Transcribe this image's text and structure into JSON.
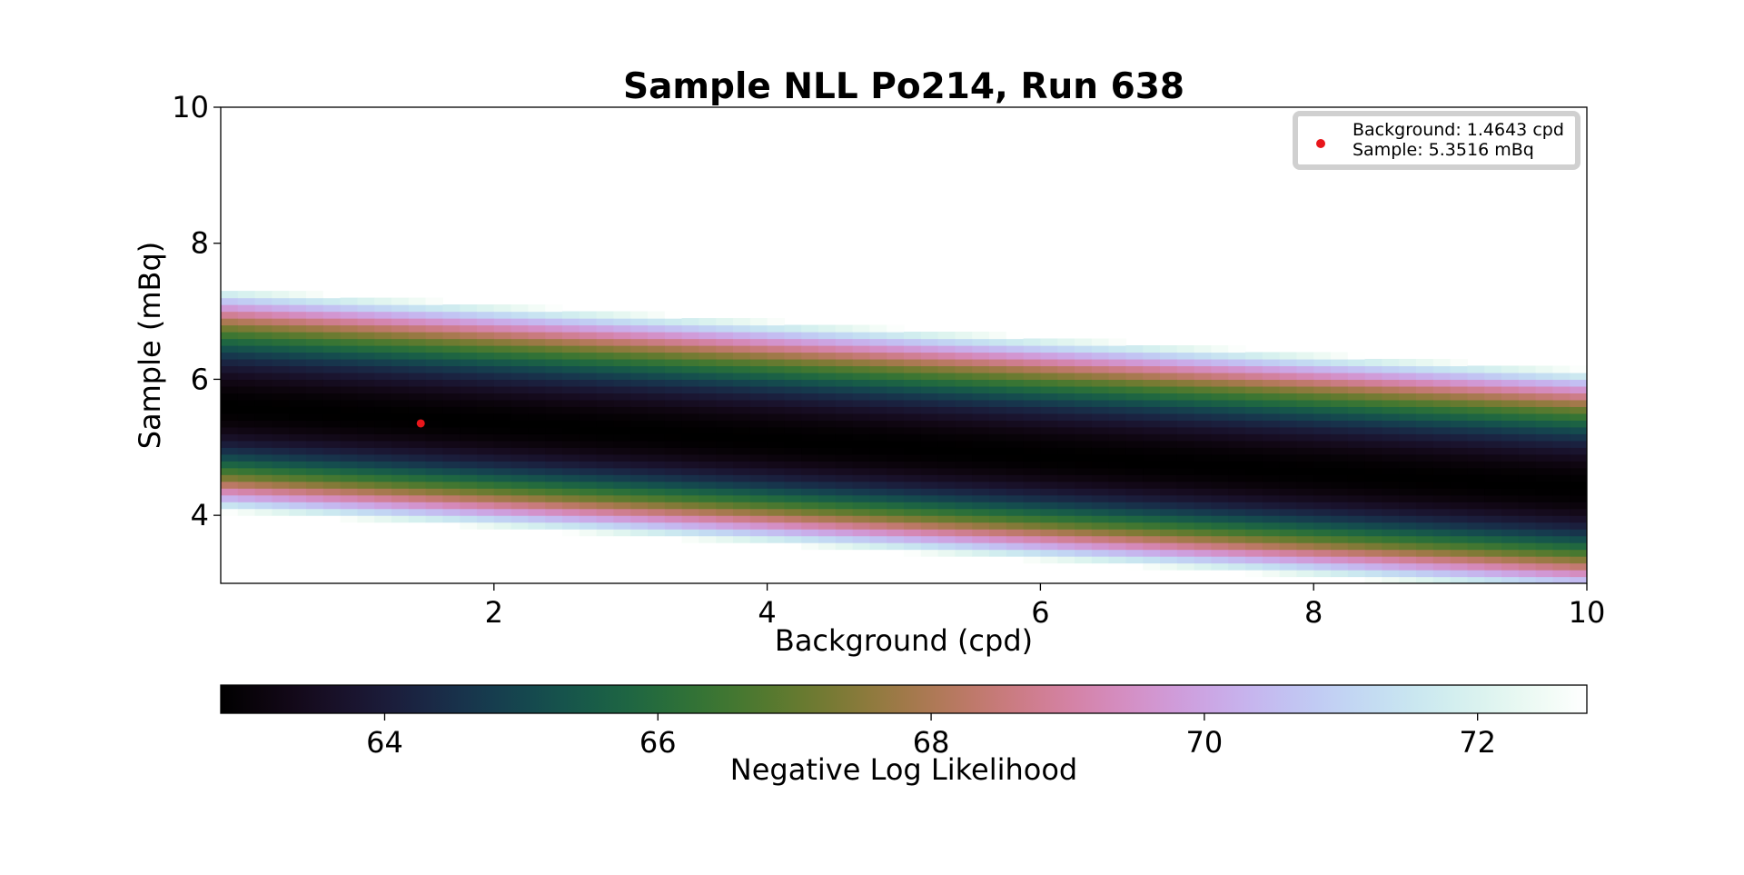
{
  "chart_data": {
    "type": "heatmap",
    "title": "Sample NLL Po214, Run 638",
    "xlabel": "Background (cpd)",
    "ylabel": "Sample (mBq)",
    "xlim": [
      0.0,
      10.0
    ],
    "ylim": [
      3.0,
      10.0
    ],
    "xticks": [
      2,
      4,
      6,
      8,
      10
    ],
    "yticks": [
      4,
      6,
      8,
      10
    ],
    "colormap": "cubehelix",
    "colorbar": {
      "label": "Negative Log Likelihood",
      "range": [
        62.8,
        72.8
      ],
      "ticks": [
        64,
        66,
        68,
        70,
        72
      ],
      "orientation": "horizontal",
      "placement": "below"
    },
    "surface": {
      "minimum_nll": 62.8,
      "best_fit_curve": [
        {
          "x": 0.0,
          "y": 5.6
        },
        {
          "x": 10.0,
          "y": 4.4
        }
      ],
      "band_outer_edge_upper": [
        {
          "x": 0.0,
          "y": 7.35
        },
        {
          "x": 10.0,
          "y": 6.15
        }
      ],
      "band_outer_edge_lower": [
        {
          "x": 0.0,
          "y": 4.05
        },
        {
          "x": 10.0,
          "y": 2.85
        }
      ]
    },
    "best_fit_point": {
      "x": 1.4643,
      "y": 5.3516,
      "color": "#e8161b"
    },
    "legend": {
      "placement": "top-right",
      "entries": [
        "Background: 1.4643 cpd",
        "Sample: 5.3516 mBq"
      ]
    }
  }
}
